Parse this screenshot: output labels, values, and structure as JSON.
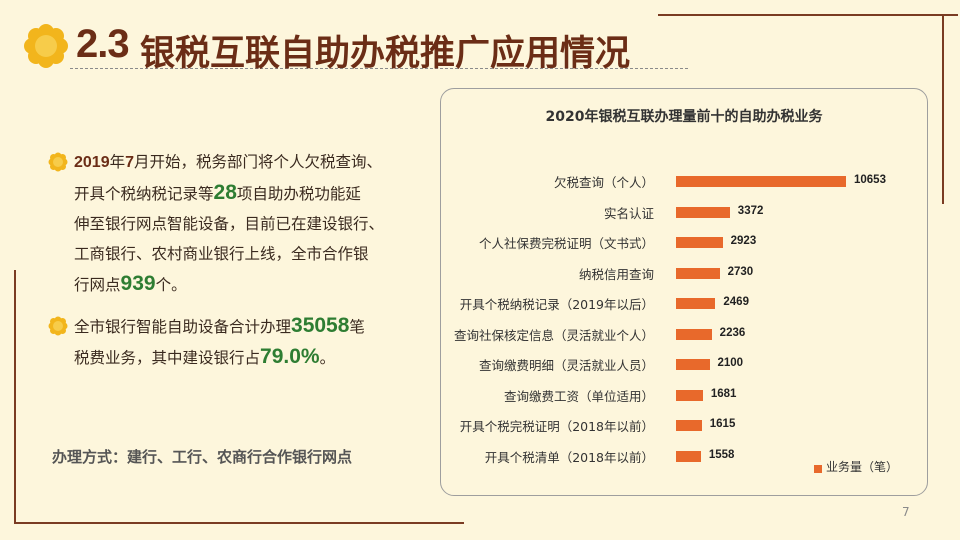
{
  "title": {
    "number": "2.3",
    "text": "银税互联自助办税推广应用情况"
  },
  "bullets": [
    {
      "lines": [
        [
          "",
          "2019",
          "年",
          "7",
          "月开始，税务部门将个人欠税查询、"
        ],
        [
          "开具个税纳税记录等",
          "28",
          "项自助办税功能延"
        ],
        [
          "伸至银行网点智能设备，目前已在建设银行、"
        ],
        [
          "工商银行、农村商业银行上线，全市合作银"
        ],
        [
          "行网点",
          "939",
          "个。"
        ]
      ]
    },
    {
      "lines": [
        [
          "全市银行智能自助设备合计办理",
          "35058",
          "笔"
        ],
        [
          "税费业务，其中建设银行占",
          "79.0%",
          "。"
        ]
      ]
    }
  ],
  "method": "办理方式：建行、工行、农商行合作银行网点",
  "chart_data": {
    "type": "bar",
    "orientation": "horizontal",
    "title": "2020年银税互联办理量前十的自助办税业务",
    "categories": [
      "欠税查询（个人）",
      "实名认证",
      "个人社保费完税证明（文书式）",
      "纳税信用查询",
      "开具个税纳税记录（2019年以后）",
      "查询社保核定信息（灵活就业个人）",
      "查询缴费明细（灵活就业人员）",
      "查询缴费工资（单位适用）",
      "开具个税完税证明（2018年以前）",
      "开具个税清单（2018年以前）"
    ],
    "series": [
      {
        "name": "业务量（笔）",
        "values": [
          10653,
          3372,
          2923,
          2730,
          2469,
          2236,
          2100,
          1681,
          1615,
          1558
        ]
      }
    ],
    "color": "#e8692b",
    "legend": "bottom-right"
  },
  "page_number": "7",
  "colors": {
    "background": "#fdf6dc",
    "title": "#6b2d16",
    "highlight": "#2e7d32",
    "bar": "#e8692b"
  }
}
